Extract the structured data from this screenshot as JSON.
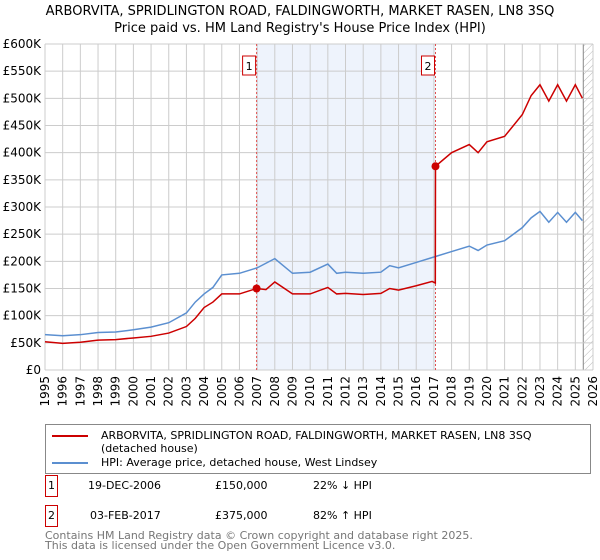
{
  "chart_data": {
    "type": "line",
    "title": "ARBORVITA, SPRIDLINGTON ROAD, FALDINGWORTH, MARKET RASEN, LN8 3SQ",
    "subtitle": "Price paid vs. HM Land Registry's House Price Index (HPI)",
    "xlim": [
      1995,
      2026
    ],
    "ylim": [
      0,
      600000
    ],
    "x_ticks": [
      "1995",
      "1996",
      "1997",
      "1998",
      "1999",
      "2000",
      "2001",
      "2002",
      "2003",
      "2004",
      "2005",
      "2006",
      "2007",
      "2008",
      "2009",
      "2010",
      "2011",
      "2012",
      "2013",
      "2014",
      "2015",
      "2016",
      "2017",
      "2018",
      "2019",
      "2020",
      "2021",
      "2022",
      "2023",
      "2024",
      "2025",
      "2026"
    ],
    "y_ticks": [
      {
        "v": 0,
        "label": "£0"
      },
      {
        "v": 50000,
        "label": "£50K"
      },
      {
        "v": 100000,
        "label": "£100K"
      },
      {
        "v": 150000,
        "label": "£150K"
      },
      {
        "v": 200000,
        "label": "£200K"
      },
      {
        "v": 250000,
        "label": "£250K"
      },
      {
        "v": 300000,
        "label": "£300K"
      },
      {
        "v": 350000,
        "label": "£350K"
      },
      {
        "v": 400000,
        "label": "£400K"
      },
      {
        "v": 450000,
        "label": "£450K"
      },
      {
        "v": 500000,
        "label": "£500K"
      },
      {
        "v": 550000,
        "label": "£550K"
      },
      {
        "v": 600000,
        "label": "£600K"
      }
    ],
    "grid": true,
    "series": [
      {
        "name": "ARBORVITA, SPRIDLINGTON ROAD, FALDINGWORTH, MARKET RASEN, LN8 3SQ (detached house)",
        "color": "#cc0000",
        "x": [
          1995,
          1996,
          1997,
          1998,
          1999,
          2000,
          2001,
          2002,
          2003,
          2003.5,
          2004,
          2004.5,
          2005,
          2006,
          2006.97,
          2007.5,
          2008,
          2009,
          2010,
          2011,
          2011.5,
          2012,
          2013,
          2014,
          2014.5,
          2015,
          2016,
          2016.9,
          2017.08,
          2017.09,
          2018,
          2019,
          2019.5,
          2020,
          2021,
          2022,
          2022.5,
          2023,
          2023.5,
          2024,
          2024.5,
          2025,
          2025.4
        ],
        "y": [
          52000,
          49000,
          51000,
          55000,
          56000,
          59000,
          62000,
          68000,
          80000,
          95000,
          115000,
          125000,
          140000,
          140000,
          150000,
          148000,
          162000,
          140000,
          140000,
          152000,
          140000,
          141000,
          139000,
          141000,
          150000,
          147000,
          155000,
          163000,
          160000,
          375000,
          400000,
          415000,
          400000,
          420000,
          430000,
          470000,
          505000,
          525000,
          495000,
          525000,
          495000,
          525000,
          500000
        ]
      },
      {
        "name": "HPI: Average price, detached house, West Lindsey",
        "color": "#5b8fd0",
        "x": [
          1995,
          1996,
          1997,
          1998,
          1999,
          2000,
          2001,
          2002,
          2003,
          2003.5,
          2004,
          2004.5,
          2005,
          2006,
          2007,
          2008,
          2009,
          2010,
          2011,
          2011.5,
          2012,
          2013,
          2014,
          2014.5,
          2015,
          2016,
          2017,
          2018,
          2019,
          2019.5,
          2020,
          2021,
          2022,
          2022.5,
          2023,
          2023.5,
          2024,
          2024.5,
          2025,
          2025.4
        ],
        "y": [
          65000,
          63000,
          65000,
          69000,
          70000,
          74000,
          79000,
          87000,
          105000,
          125000,
          140000,
          152000,
          175000,
          178000,
          188000,
          205000,
          178000,
          180000,
          195000,
          178000,
          180000,
          178000,
          180000,
          192000,
          188000,
          198000,
          208000,
          218000,
          228000,
          220000,
          230000,
          238000,
          262000,
          280000,
          292000,
          272000,
          290000,
          272000,
          290000,
          275000
        ]
      }
    ],
    "annotations": [
      {
        "label": "1",
        "x": 2006.97,
        "y": 150000
      },
      {
        "label": "2",
        "x": 2017.09,
        "y": 375000
      }
    ]
  },
  "legend": {
    "red": "ARBORVITA, SPRIDLINGTON ROAD, FALDINGWORTH, MARKET RASEN, LN8 3SQ (detached house)",
    "blue": "HPI: Average price, detached house, West Lindsey"
  },
  "sales": [
    {
      "num": "1",
      "date": "19-DEC-2006",
      "price": "£150,000",
      "hpi": "22% ↓ HPI"
    },
    {
      "num": "2",
      "date": "03-FEB-2017",
      "price": "£375,000",
      "hpi": "82% ↑ HPI"
    }
  ],
  "footer": {
    "line1": "Contains HM Land Registry data © Crown copyright and database right 2025.",
    "line2": "This data is licensed under the Open Government Licence v3.0."
  }
}
